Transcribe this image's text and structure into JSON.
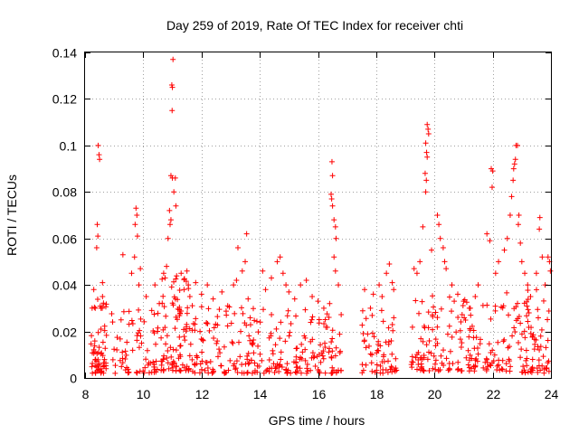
{
  "chart_data": {
    "type": "scatter",
    "title": "Day 259 of 2019, Rate Of TEC Index for receiver chti",
    "xlabel": "GPS time / hours",
    "ylabel": "ROTI / TECUs",
    "xlim": [
      8,
      24
    ],
    "ylim": [
      0,
      0.14
    ],
    "xticks": [
      "8",
      "10",
      "12",
      "14",
      "16",
      "18",
      "20",
      "22",
      "24"
    ],
    "yticks": [
      "0",
      "0.02",
      "0.04",
      "0.06",
      "0.08",
      "0.1",
      "0.12",
      "0.14"
    ],
    "grid": true,
    "marker": "+",
    "color": "#ff0000",
    "series": [
      {
        "name": "ROTI",
        "points": [
          [
            8.45,
            0.1
          ],
          [
            8.48,
            0.096
          ],
          [
            8.5,
            0.094
          ],
          [
            8.42,
            0.066
          ],
          [
            8.44,
            0.061
          ],
          [
            8.4,
            0.056
          ],
          [
            8.6,
            0.041
          ],
          [
            8.3,
            0.038
          ],
          [
            8.35,
            0.03
          ],
          [
            8.55,
            0.03
          ],
          [
            8.6,
            0.035
          ],
          [
            9.3,
            0.053
          ],
          [
            9.6,
            0.045
          ],
          [
            9.7,
            0.052
          ],
          [
            9.75,
            0.073
          ],
          [
            9.78,
            0.07
          ],
          [
            9.72,
            0.066
          ],
          [
            9.8,
            0.061
          ],
          [
            9.9,
            0.047
          ],
          [
            9.85,
            0.04
          ],
          [
            10.1,
            0.035
          ],
          [
            10.4,
            0.04
          ],
          [
            10.55,
            0.032
          ],
          [
            10.7,
            0.045
          ],
          [
            10.75,
            0.043
          ],
          [
            10.8,
            0.048
          ],
          [
            10.85,
            0.06
          ],
          [
            10.95,
            0.087
          ],
          [
            11.0,
            0.086
          ],
          [
            11.02,
            0.137
          ],
          [
            10.98,
            0.126
          ],
          [
            11.0,
            0.125
          ],
          [
            10.99,
            0.115
          ],
          [
            11.05,
            0.08
          ],
          [
            11.1,
            0.086
          ],
          [
            11.12,
            0.074
          ],
          [
            10.92,
            0.066
          ],
          [
            10.95,
            0.068
          ],
          [
            10.9,
            0.072
          ],
          [
            11.3,
            0.045
          ],
          [
            11.4,
            0.038
          ],
          [
            11.5,
            0.046
          ],
          [
            11.6,
            0.035
          ],
          [
            11.8,
            0.041
          ],
          [
            12.0,
            0.036
          ],
          [
            12.2,
            0.04
          ],
          [
            12.4,
            0.034
          ],
          [
            12.7,
            0.037
          ],
          [
            12.9,
            0.031
          ],
          [
            13.1,
            0.04
          ],
          [
            13.2,
            0.042
          ],
          [
            13.25,
            0.056
          ],
          [
            13.4,
            0.046
          ],
          [
            13.5,
            0.05
          ],
          [
            13.55,
            0.062
          ],
          [
            13.6,
            0.034
          ],
          [
            14.1,
            0.046
          ],
          [
            14.2,
            0.038
          ],
          [
            14.4,
            0.043
          ],
          [
            14.6,
            0.05
          ],
          [
            14.7,
            0.052
          ],
          [
            14.8,
            0.045
          ],
          [
            14.9,
            0.04
          ],
          [
            15.0,
            0.037
          ],
          [
            15.2,
            0.034
          ],
          [
            15.4,
            0.04
          ],
          [
            15.6,
            0.042
          ],
          [
            15.8,
            0.035
          ],
          [
            16.0,
            0.033
          ],
          [
            16.2,
            0.03
          ],
          [
            16.4,
            0.032
          ],
          [
            16.48,
            0.093
          ],
          [
            16.5,
            0.087
          ],
          [
            16.45,
            0.079
          ],
          [
            16.47,
            0.077
          ],
          [
            16.5,
            0.074
          ],
          [
            16.55,
            0.068
          ],
          [
            16.6,
            0.065
          ],
          [
            16.62,
            0.06
          ],
          [
            16.55,
            0.052
          ],
          [
            16.6,
            0.046
          ],
          [
            16.7,
            0.04
          ],
          [
            17.6,
            0.038
          ],
          [
            17.8,
            0.03
          ],
          [
            17.9,
            0.036
          ],
          [
            18.1,
            0.04
          ],
          [
            18.2,
            0.035
          ],
          [
            18.35,
            0.045
          ],
          [
            18.45,
            0.049
          ],
          [
            18.55,
            0.041
          ],
          [
            18.6,
            0.038
          ],
          [
            19.3,
            0.047
          ],
          [
            19.4,
            0.045
          ],
          [
            19.5,
            0.05
          ],
          [
            19.6,
            0.065
          ],
          [
            19.7,
            0.08
          ],
          [
            19.72,
            0.085
          ],
          [
            19.68,
            0.088
          ],
          [
            19.75,
            0.095
          ],
          [
            19.73,
            0.097
          ],
          [
            19.7,
            0.101
          ],
          [
            19.78,
            0.107
          ],
          [
            19.75,
            0.109
          ],
          [
            19.8,
            0.105
          ],
          [
            19.9,
            0.055
          ],
          [
            20.1,
            0.07
          ],
          [
            20.15,
            0.066
          ],
          [
            20.2,
            0.06
          ],
          [
            20.3,
            0.056
          ],
          [
            20.35,
            0.05
          ],
          [
            20.4,
            0.047
          ],
          [
            20.6,
            0.04
          ],
          [
            20.8,
            0.036
          ],
          [
            21.0,
            0.033
          ],
          [
            21.2,
            0.03
          ],
          [
            21.4,
            0.035
          ],
          [
            21.5,
            0.04
          ],
          [
            21.8,
            0.062
          ],
          [
            21.9,
            0.059
          ],
          [
            21.95,
            0.09
          ],
          [
            22.0,
            0.089
          ],
          [
            21.98,
            0.082
          ],
          [
            22.1,
            0.045
          ],
          [
            22.2,
            0.05
          ],
          [
            22.4,
            0.055
          ],
          [
            22.5,
            0.06
          ],
          [
            22.6,
            0.07
          ],
          [
            22.65,
            0.078
          ],
          [
            22.7,
            0.085
          ],
          [
            22.72,
            0.09
          ],
          [
            22.75,
            0.092
          ],
          [
            22.8,
            0.1
          ],
          [
            22.85,
            0.1
          ],
          [
            22.78,
            0.094
          ],
          [
            22.9,
            0.07
          ],
          [
            22.88,
            0.066
          ],
          [
            22.95,
            0.058
          ],
          [
            23.0,
            0.05
          ],
          [
            23.1,
            0.045
          ],
          [
            23.2,
            0.04
          ],
          [
            23.3,
            0.035
          ],
          [
            23.5,
            0.045
          ],
          [
            23.6,
            0.064
          ],
          [
            23.62,
            0.069
          ],
          [
            23.7,
            0.052
          ],
          [
            23.8,
            0.04
          ],
          [
            23.9,
            0.052
          ],
          [
            23.95,
            0.05
          ],
          [
            23.98,
            0.046
          ]
        ]
      }
    ],
    "dense_segments": [
      {
        "start": 8.2,
        "end": 8.75,
        "low": 0.002,
        "high": 0.034,
        "density": 60
      },
      {
        "start": 8.9,
        "end": 10.6,
        "low": 0.002,
        "high": 0.03,
        "density": 70
      },
      {
        "start": 10.6,
        "end": 11.6,
        "low": 0.003,
        "high": 0.044,
        "density": 90
      },
      {
        "start": 11.6,
        "end": 13.9,
        "low": 0.002,
        "high": 0.032,
        "density": 110
      },
      {
        "start": 13.9,
        "end": 15.4,
        "low": 0.002,
        "high": 0.03,
        "density": 70
      },
      {
        "start": 15.4,
        "end": 16.8,
        "low": 0.002,
        "high": 0.03,
        "density": 70
      },
      {
        "start": 17.5,
        "end": 18.7,
        "low": 0.002,
        "high": 0.03,
        "density": 60
      },
      {
        "start": 19.2,
        "end": 21.0,
        "low": 0.003,
        "high": 0.036,
        "density": 90
      },
      {
        "start": 21.0,
        "end": 22.4,
        "low": 0.003,
        "high": 0.034,
        "density": 70
      },
      {
        "start": 22.4,
        "end": 24.0,
        "low": 0.002,
        "high": 0.038,
        "density": 90
      }
    ]
  }
}
